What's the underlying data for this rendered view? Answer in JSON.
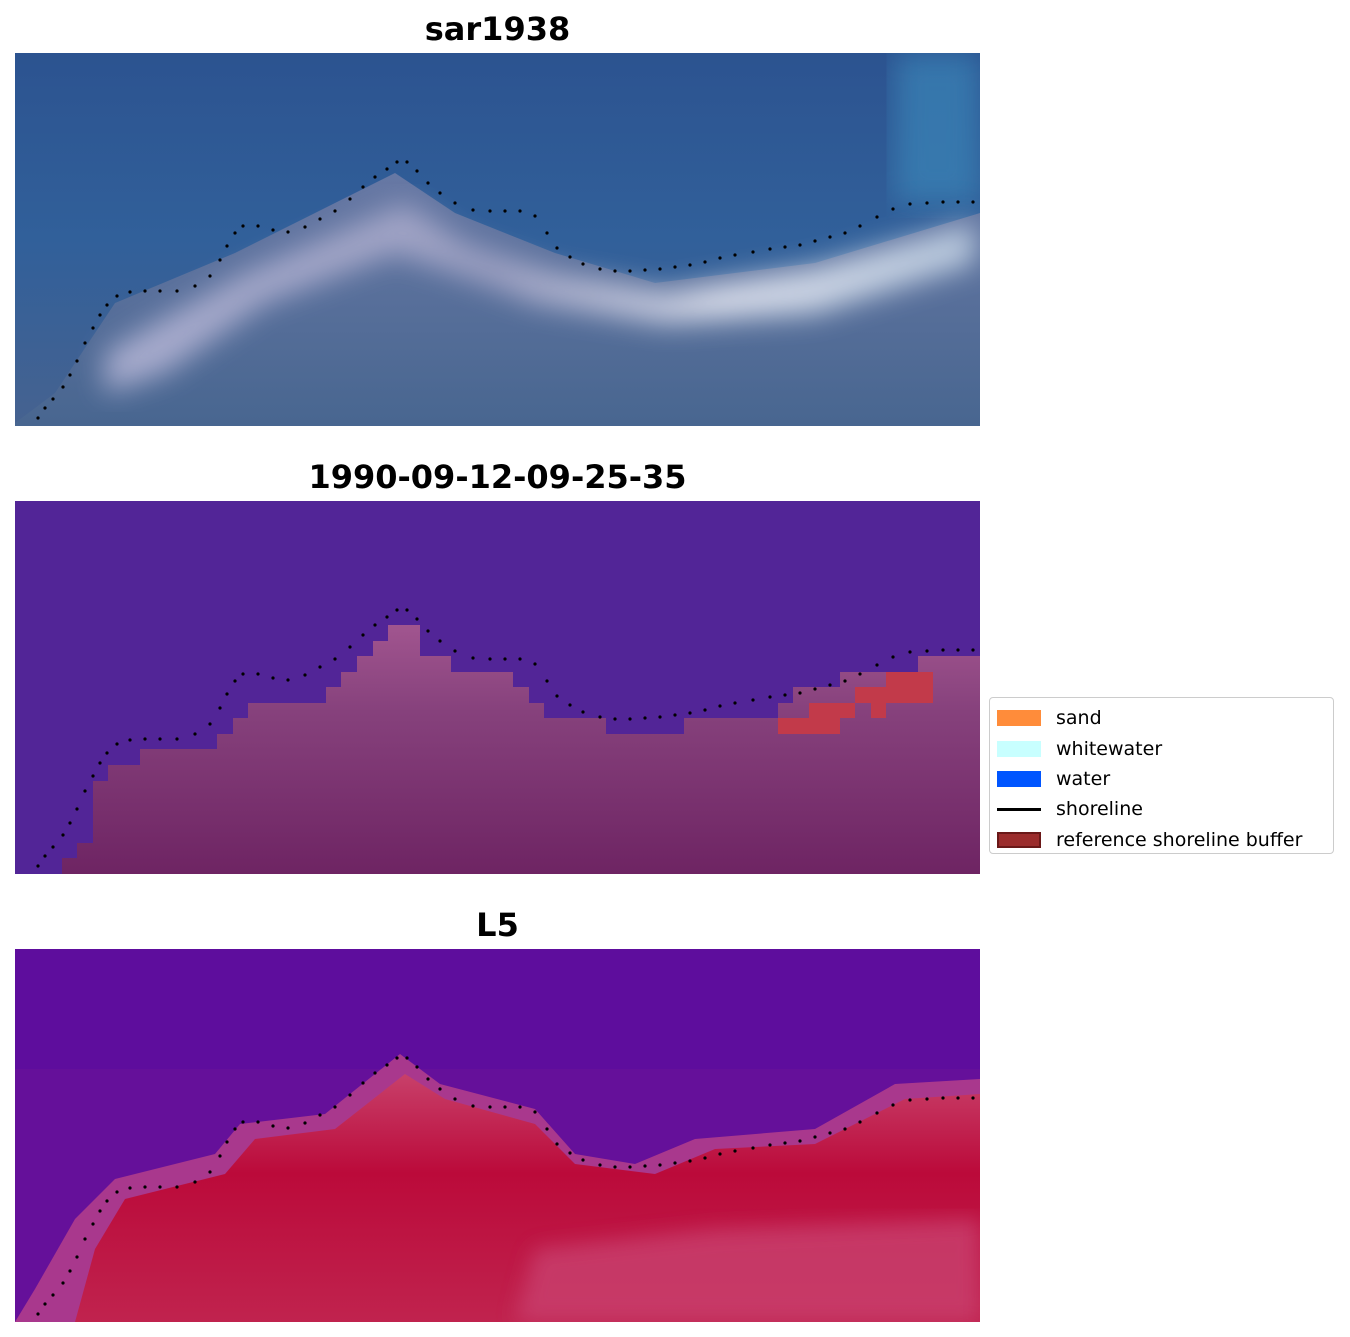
{
  "figure": {
    "panels": [
      {
        "title": "sar1938",
        "kind": "rgb-image"
      },
      {
        "title": "1990-09-12-09-25-35",
        "kind": "classification"
      },
      {
        "title": "L5",
        "kind": "index-image"
      }
    ],
    "legend": {
      "placement": "right-middle",
      "items": [
        {
          "label": "sand",
          "color": "#ff8c3a",
          "style": "patch"
        },
        {
          "label": "whitewater",
          "color": "#c8ffff",
          "style": "patch"
        },
        {
          "label": "water",
          "color": "#0055ff",
          "style": "patch"
        },
        {
          "label": "shoreline",
          "color": "#000000",
          "style": "line"
        },
        {
          "label": "reference shoreline buffer",
          "color": "#9b2c2c",
          "style": "patch"
        }
      ]
    },
    "colors": {
      "water_class": "#522597",
      "land_class": "#722564",
      "buffer_overlap": "#c23a4a",
      "shoreline_dots": "#000000"
    }
  }
}
